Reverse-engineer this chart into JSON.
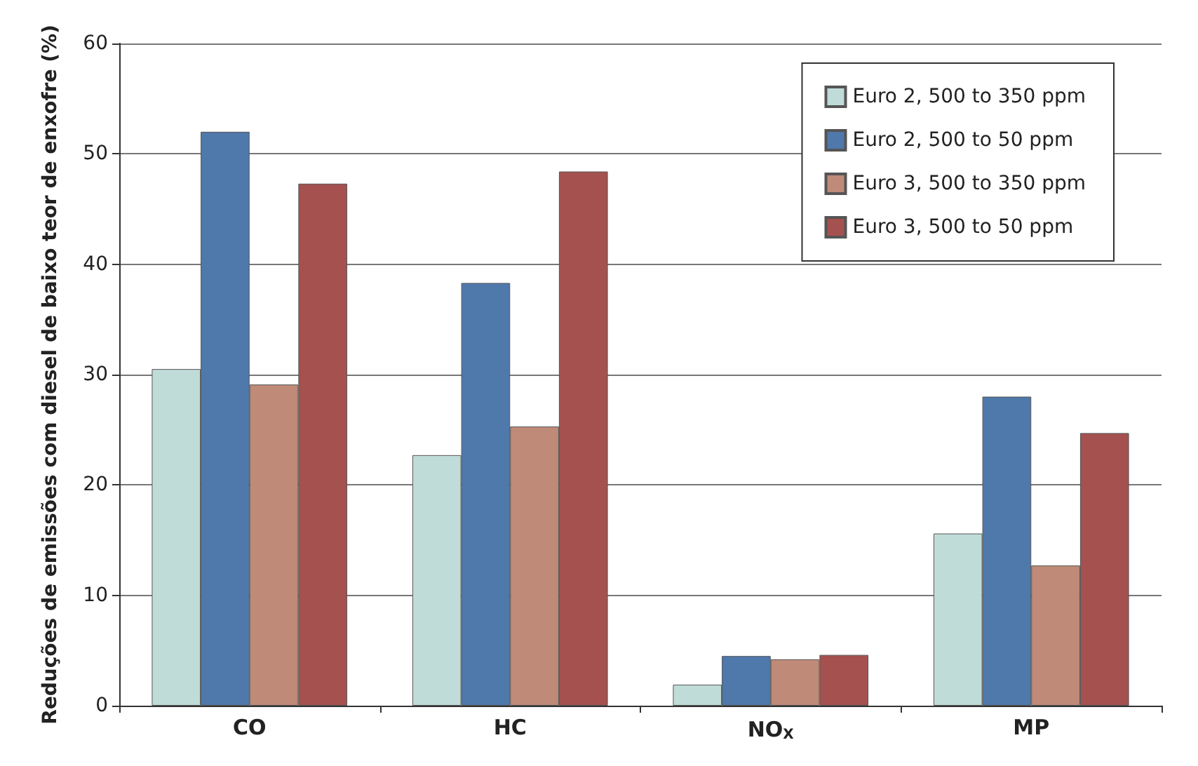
{
  "chart_data": {
    "type": "bar",
    "ylabel": "Reduções de emissões com diesel de baixo teor de enxofre (%)",
    "categories": [
      "CO",
      "HC",
      "NO$_{X}$",
      "MP"
    ],
    "series": [
      {
        "name": "Euro 2, 500 to 350 ppm",
        "color": "#c0dcd8",
        "values": [
          30.5,
          22.7,
          1.9,
          15.6
        ]
      },
      {
        "name": "Euro 2, 500 to 50 ppm",
        "color": "#4f78ab",
        "values": [
          52,
          38.3,
          4.5,
          28
        ]
      },
      {
        "name": "Euro 3, 500 to 350 ppm",
        "color": "#bf8a78",
        "values": [
          29.1,
          25.3,
          4.2,
          12.7
        ]
      },
      {
        "name": "Euro 3, 500 to 50 ppm",
        "color": "#a5514f",
        "values": [
          47.3,
          48.4,
          4.6,
          24.7
        ]
      }
    ],
    "ylim": [
      0,
      60
    ],
    "yticks": [
      0,
      10,
      20,
      30,
      40,
      50,
      60
    ],
    "grid": "y",
    "legend": "top right"
  }
}
